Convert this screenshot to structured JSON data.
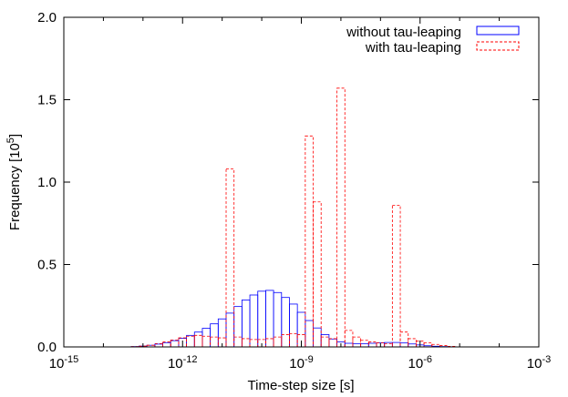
{
  "chart_data": {
    "type": "bar",
    "xlabel": "Time-step size [s]",
    "ylabel": "Frequency [10^5]",
    "xscale": "log10",
    "xlim": [
      1e-15,
      0.001
    ],
    "ylim": [
      0,
      2.0
    ],
    "grid": false,
    "legend_position": "top-right",
    "xticks": [
      {
        "value": 1e-15,
        "base": "10",
        "exp": "-15"
      },
      {
        "value": 1e-12,
        "base": "10",
        "exp": "-12"
      },
      {
        "value": 1e-09,
        "base": "10",
        "exp": "-9"
      },
      {
        "value": 1e-06,
        "base": "10",
        "exp": "-6"
      },
      {
        "value": 0.001,
        "base": "10",
        "exp": "-3"
      }
    ],
    "yticks": [
      "0.0",
      "0.5",
      "1.0",
      "1.5",
      "2.0"
    ],
    "ylabel_parts": {
      "main": "Frequency [10",
      "sup": "5",
      "tail": "]"
    },
    "series": [
      {
        "name": "without tau-leaping",
        "color": "#0000ff",
        "dash": "solid",
        "bins_log10": [
          -13.4,
          -13.2,
          -13.0,
          -12.8,
          -12.6,
          -12.4,
          -12.2,
          -12.0,
          -11.8,
          -11.6,
          -11.4,
          -11.2,
          -11.0,
          -10.8,
          -10.6,
          -10.4,
          -10.2,
          -10.0,
          -9.8,
          -9.6,
          -9.4,
          -9.2,
          -9.0,
          -8.8,
          -8.6,
          -8.4,
          -8.2,
          -8.0,
          -7.8,
          -7.6,
          -7.4,
          -7.2,
          -7.0,
          -6.8,
          -6.6,
          -6.4,
          -6.2,
          -6.0,
          -5.8,
          -5.6,
          -5.4,
          -5.2,
          -5.0
        ],
        "values": [
          0.0,
          0.002,
          0.005,
          0.01,
          0.017,
          0.026,
          0.038,
          0.052,
          0.07,
          0.09,
          0.113,
          0.14,
          0.17,
          0.205,
          0.245,
          0.285,
          0.315,
          0.338,
          0.343,
          0.33,
          0.3,
          0.26,
          0.21,
          0.16,
          0.115,
          0.075,
          0.048,
          0.03,
          0.022,
          0.02,
          0.02,
          0.022,
          0.025,
          0.027,
          0.027,
          0.024,
          0.018,
          0.012,
          0.007,
          0.004,
          0.002,
          0.001,
          0.0
        ]
      },
      {
        "name": "with tau-leaping",
        "color": "#ff0000",
        "dash": "dashed",
        "bins_log10": [
          -13.4,
          -13.2,
          -13.0,
          -12.8,
          -12.6,
          -12.4,
          -12.2,
          -12.0,
          -11.8,
          -11.6,
          -11.4,
          -11.2,
          -11.0,
          -10.8,
          -10.6,
          -10.4,
          -10.2,
          -10.0,
          -9.8,
          -9.6,
          -9.4,
          -9.2,
          -9.0,
          -8.8,
          -8.6,
          -8.4,
          -8.2,
          -8.0,
          -7.8,
          -7.6,
          -7.4,
          -7.2,
          -7.0,
          -6.8,
          -6.6,
          -6.4,
          -6.2,
          -6.0,
          -5.8,
          -5.6,
          -5.4,
          -5.2,
          -5.0
        ],
        "values": [
          0.0,
          0.002,
          0.005,
          0.01,
          0.02,
          0.03,
          0.042,
          0.055,
          0.065,
          0.07,
          0.065,
          0.06,
          0.055,
          1.08,
          0.06,
          0.05,
          0.045,
          0.045,
          0.05,
          0.06,
          0.075,
          0.08,
          0.075,
          1.28,
          0.88,
          0.06,
          0.05,
          1.57,
          0.1,
          0.06,
          0.04,
          0.03,
          0.025,
          0.02,
          0.86,
          0.09,
          0.05,
          0.035,
          0.025,
          0.015,
          0.008,
          0.003,
          0.0
        ]
      }
    ]
  }
}
